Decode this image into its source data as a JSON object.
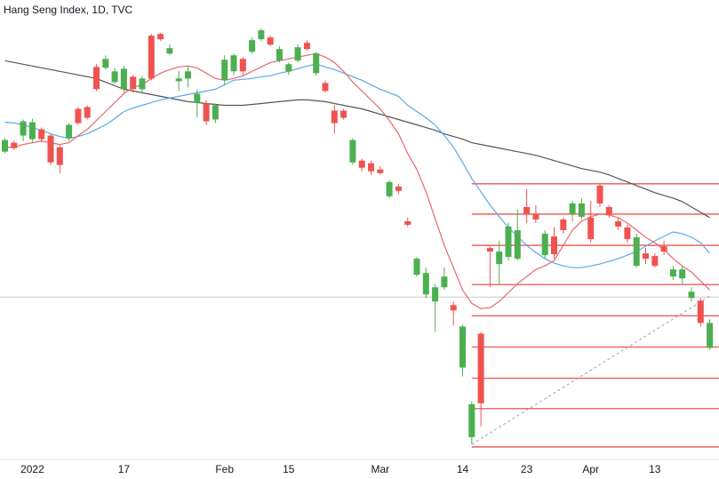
{
  "chart_data": {
    "type": "candlestick",
    "title": "Hang Seng Index, 1D, TVC",
    "categories": [
      null,
      null,
      null,
      "2022",
      null,
      null,
      null,
      null,
      null,
      null,
      null,
      null,
      null,
      "17",
      null,
      null,
      null,
      null,
      null,
      null,
      null,
      null,
      null,
      null,
      "Feb",
      null,
      null,
      null,
      null,
      null,
      null,
      "15",
      null,
      null,
      null,
      null,
      null,
      null,
      null,
      null,
      null,
      "Mar",
      null,
      null,
      null,
      null,
      null,
      null,
      null,
      null,
      "14",
      null,
      null,
      null,
      null,
      null,
      null,
      "23",
      null,
      null,
      null,
      null,
      null,
      null,
      "Apr",
      null,
      null,
      null,
      null,
      null,
      null,
      "13",
      null,
      null,
      null,
      null,
      null,
      null
    ],
    "open": [
      23550,
      23700,
      23820,
      23760,
      23925,
      23820,
      23625,
      23775,
      24270,
      24300,
      24975,
      24960,
      24720,
      24600,
      24810,
      24600,
      25500,
      25530,
      25200,
      24735,
      24780,
      24375,
      24360,
      24090,
      24750,
      24900,
      25110,
      25230,
      25440,
      25470,
      25080,
      24900,
      25080,
      25380,
      24870,
      24705,
      24240,
      24240,
      23370,
      23400,
      23355,
      23250,
      22800,
      22965,
      22380,
      21480,
      21150,
      21030,
      21270,
      20970,
      19920,
      18750,
      20490,
      21930,
      21660,
      21780,
      21750,
      22620,
      22500,
      21810,
      22125,
      22410,
      22500,
      22455,
      22440,
      22980,
      22620,
      22380,
      22275,
      21630,
      21840,
      21795,
      21960,
      21450,
      21420,
      21090,
      21045,
      20250
    ],
    "high": [
      23775,
      23730,
      24090,
      24105,
      23955,
      23850,
      23655,
      24030,
      24300,
      24330,
      25020,
      25170,
      24960,
      24990,
      24840,
      24825,
      25530,
      25545,
      25350,
      24900,
      24990,
      24600,
      24420,
      24360,
      25170,
      25200,
      25140,
      25470,
      25620,
      25500,
      25320,
      25050,
      25350,
      25425,
      25230,
      24750,
      24330,
      24270,
      23775,
      23430,
      23400,
      23310,
      23070,
      23010,
      22440,
      21780,
      21600,
      21330,
      21600,
      21030,
      20640,
      19350,
      20520,
      21960,
      22050,
      22350,
      22575,
      22920,
      22650,
      22230,
      22275,
      22440,
      22725,
      22770,
      22725,
      23010,
      22650,
      22440,
      22320,
      22170,
      21930,
      21840,
      22050,
      21630,
      21630,
      21270,
      21090,
      20730
    ],
    "low": [
      23520,
      23580,
      23730,
      23700,
      23700,
      23325,
      23190,
      23730,
      24000,
      24090,
      24570,
      24930,
      24690,
      24540,
      24540,
      24525,
      24750,
      25410,
      25170,
      24570,
      24630,
      24120,
      24000,
      24030,
      24675,
      24840,
      24840,
      25200,
      25410,
      25320,
      25050,
      24840,
      25050,
      25245,
      24825,
      24540,
      23850,
      24090,
      23325,
      23220,
      23160,
      23160,
      22770,
      22830,
      22290,
      21450,
      21090,
      20520,
      21225,
      20625,
      19770,
      18630,
      18930,
      21270,
      21330,
      21720,
      21720,
      22350,
      22350,
      21750,
      21750,
      22170,
      22380,
      22410,
      22020,
      22620,
      22440,
      22230,
      22020,
      21600,
      21660,
      21600,
      21810,
      21390,
      21330,
      21030,
      20610,
      20220
    ],
    "close": [
      23745,
      23610,
      24060,
      24045,
      23760,
      23370,
      23325,
      24000,
      24030,
      24120,
      24600,
      25110,
      24900,
      24945,
      24600,
      24780,
      24780,
      25440,
      25290,
      24780,
      24900,
      24525,
      24060,
      24330,
      25095,
      25170,
      24900,
      25425,
      25590,
      25350,
      25275,
      25020,
      25305,
      25275,
      25200,
      24570,
      24030,
      24120,
      23745,
      23280,
      23220,
      23190,
      23040,
      22890,
      22320,
      21750,
      21510,
      21270,
      21450,
      20880,
      20610,
      19305,
      19320,
      21870,
      21870,
      22290,
      22230,
      22500,
      22410,
      22170,
      21825,
      22230,
      22680,
      22680,
      22080,
      22680,
      22500,
      22290,
      22080,
      22110,
      21750,
      21630,
      21870,
      21570,
      21570,
      21195,
      20670,
      20670
    ],
    "up_color": "#4caf50",
    "down_color": "#ef5350",
    "lines": [
      {
        "color": "#555555",
        "values": [
          25080,
          25050,
          25020,
          24990,
          24960,
          24930,
          24900,
          24870,
          24840,
          24810,
          24780,
          24720,
          24660,
          24600,
          24570,
          24540,
          24510,
          24480,
          24450,
          24420,
          24390,
          24375,
          24360,
          24345,
          24330,
          24330,
          24330,
          24345,
          24360,
          24375,
          24390,
          24405,
          24420,
          24420,
          24405,
          24390,
          24360,
          24330,
          24300,
          24270,
          24225,
          24180,
          24135,
          24090,
          24045,
          24000,
          23955,
          23910,
          23850,
          23805,
          23760,
          23700,
          23670,
          23640,
          23610,
          23580,
          23550,
          23520,
          23490,
          23445,
          23400,
          23355,
          23310,
          23265,
          23235,
          23205,
          23160,
          23100,
          23040,
          22980,
          22920,
          22860,
          22815,
          22770,
          22710,
          22620,
          22530,
          22440
        ]
      },
      {
        "color": "#5aa9e6",
        "values": [
          24045,
          24030,
          24000,
          23955,
          23910,
          23850,
          23805,
          23775,
          23805,
          23850,
          23925,
          24000,
          24105,
          24225,
          24285,
          24330,
          24375,
          24420,
          24450,
          24480,
          24510,
          24540,
          24570,
          24600,
          24675,
          24750,
          24765,
          24780,
          24810,
          24825,
          24870,
          24900,
          24945,
          24990,
          25020,
          24975,
          24930,
          24870,
          24810,
          24750,
          24675,
          24600,
          24540,
          24480,
          24330,
          24225,
          24120,
          24000,
          23820,
          23625,
          23370,
          23100,
          22875,
          22650,
          22455,
          22275,
          22125,
          21975,
          21855,
          21750,
          21675,
          21630,
          21600,
          21600,
          21630,
          21660,
          21705,
          21750,
          21810,
          21870,
          21960,
          22050,
          22125,
          22200,
          22170,
          22110,
          22020,
          21840
        ]
      },
      {
        "color": "#e8676b",
        "values": [
          23625,
          23625,
          23670,
          23700,
          23730,
          23700,
          23670,
          23700,
          23820,
          23925,
          24075,
          24225,
          24375,
          24525,
          24630,
          24675,
          24780,
          24870,
          24930,
          24975,
          24990,
          24960,
          24870,
          24780,
          24750,
          24780,
          24825,
          24900,
          24975,
          25050,
          25080,
          25110,
          25140,
          25170,
          25200,
          25140,
          25050,
          24900,
          24720,
          24570,
          24420,
          24270,
          24075,
          23850,
          23520,
          23250,
          22875,
          22425,
          21975,
          21600,
          21225,
          21000,
          20910,
          20925,
          21030,
          21180,
          21330,
          21450,
          21570,
          21630,
          21720,
          21975,
          22230,
          22380,
          22455,
          22500,
          22485,
          22440,
          22350,
          22230,
          22110,
          22020,
          21900,
          21750,
          21630,
          21525,
          21375,
          21225
        ]
      }
    ],
    "levels": {
      "color": "#ef5350",
      "values": [
        23010,
        22500,
        21975,
        21315,
        20790,
        20265,
        19740,
        19230,
        18585
      ]
    },
    "price_line": {
      "color": "#c8c8cc",
      "value": 21105
    },
    "trendline": {
      "color": "#a0a0a0",
      "x": [
        51,
        77
      ],
      "values": [
        18630,
        21120
      ]
    },
    "ylim": [
      18375,
      26100
    ]
  }
}
